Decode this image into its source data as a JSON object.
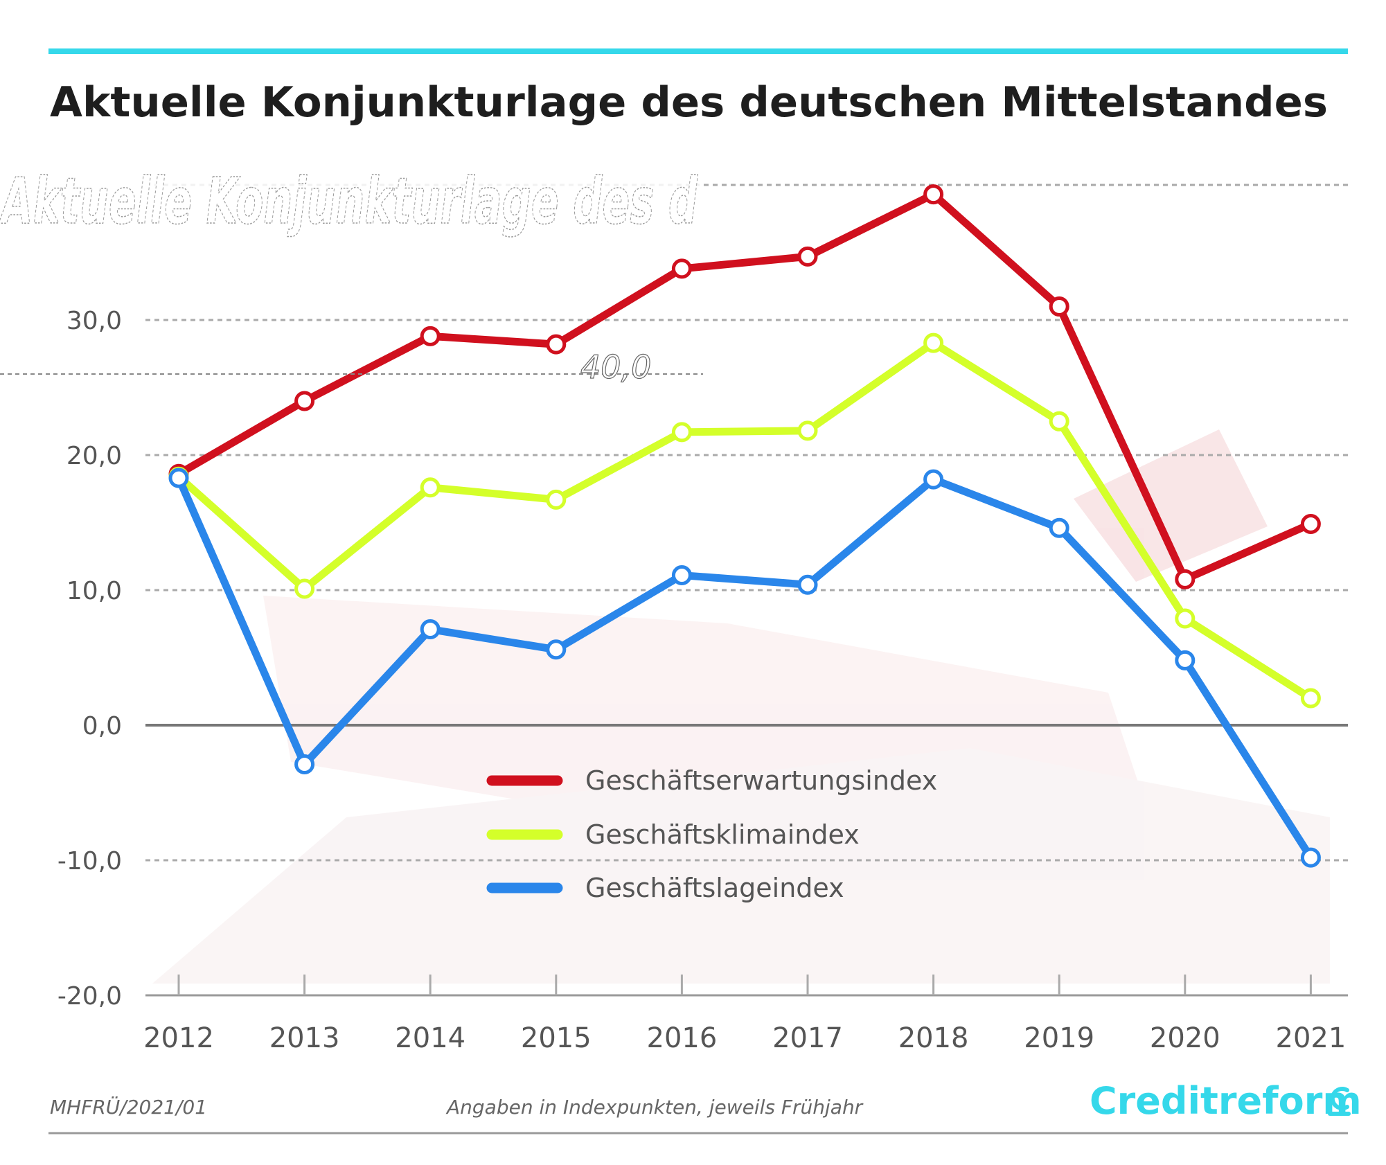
{
  "header": {
    "title": "Aktuelle Konjunkturlage des deutschen Mittelstandes",
    "ghost_title": "Aktuelle Konjunkturlage des d",
    "ghost_value": "40,0"
  },
  "footer": {
    "source": "MHFRÜ/2021/01",
    "note": "Angaben in Indexpunkten, jeweils Frühjahr",
    "brand": "Creditreform"
  },
  "colors": {
    "accent_rule": "#35d8ea",
    "expectations": "#d0101e",
    "climate": "#d4ff2a",
    "situation": "#2a86ea",
    "grid": "#aaaaaa",
    "zero_line": "#777777",
    "brand": "#35d8ea"
  },
  "chart_data": {
    "type": "line",
    "title": "Aktuelle Konjunkturlage des deutschen Mittelstandes",
    "xlabel": "",
    "ylabel": "",
    "x": [
      "2012",
      "2013",
      "2014",
      "2015",
      "2016",
      "2017",
      "2018",
      "2019",
      "2020",
      "2021"
    ],
    "ylim": [
      -20,
      40
    ],
    "yticks": [
      "-20,0",
      "-10,0",
      "0,0",
      "10,0",
      "20,0",
      "30,0"
    ],
    "grid": true,
    "legend": "center",
    "series": [
      {
        "name": "Geschäftserwartungsindex",
        "color_key": "expectations",
        "values": [
          18.6,
          24.0,
          28.8,
          28.2,
          33.8,
          34.7,
          39.3,
          31.0,
          10.8,
          14.9
        ]
      },
      {
        "name": "Geschäftsklimaindex",
        "color_key": "climate",
        "values": [
          18.4,
          10.1,
          17.6,
          16.7,
          21.7,
          21.8,
          28.3,
          22.5,
          7.9,
          2.0
        ]
      },
      {
        "name": "Geschäftslageindex",
        "color_key": "situation",
        "values": [
          18.3,
          -2.9,
          7.1,
          5.6,
          11.1,
          10.4,
          18.2,
          14.6,
          4.8,
          -9.8
        ]
      }
    ]
  }
}
